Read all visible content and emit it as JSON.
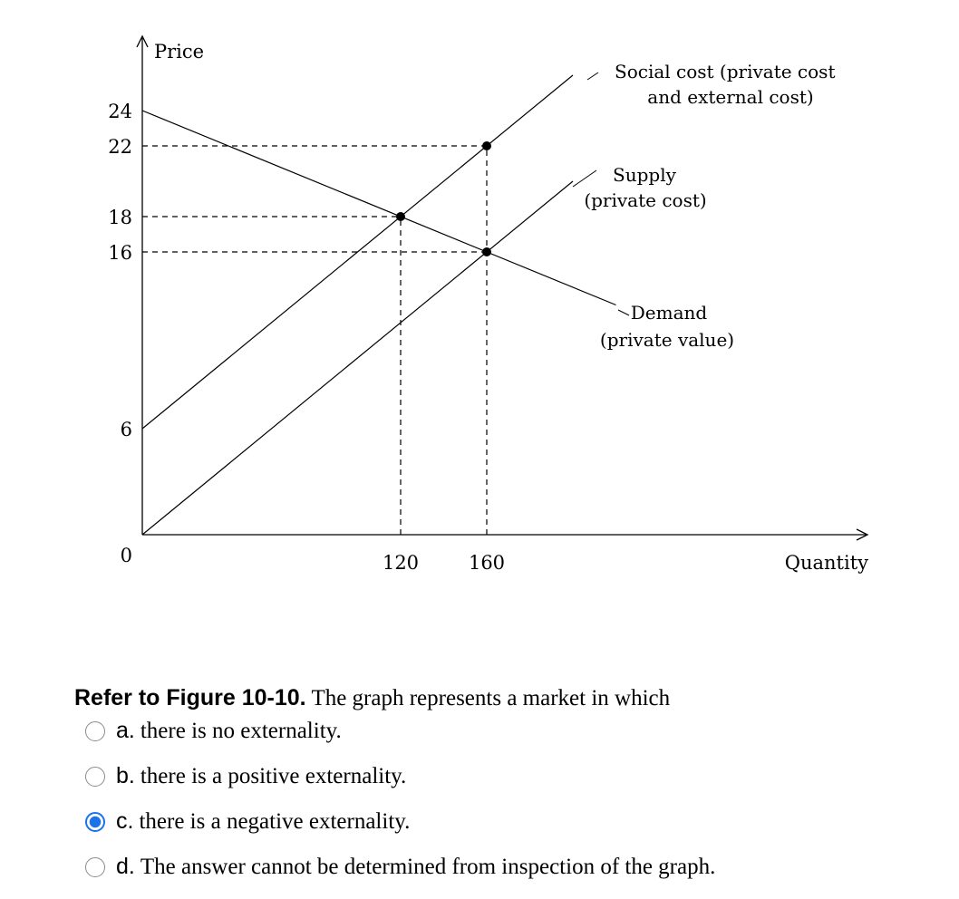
{
  "chart_data": {
    "type": "line",
    "ylabel": "Price",
    "xlabel": "Quantity",
    "xlim": [
      0,
      280
    ],
    "ylim": [
      0,
      27
    ],
    "yticks": [
      "24",
      "22",
      "18",
      "16",
      "6",
      "0"
    ],
    "xticks": [
      "120",
      "160"
    ],
    "series": [
      {
        "name": "Social cost (private cost and external cost)",
        "label_lines": [
          "Social cost (private cost",
          "and external cost)"
        ],
        "x": [
          0,
          200
        ],
        "y": [
          6,
          26
        ]
      },
      {
        "name": "Supply (private cost)",
        "label_lines": [
          "Supply",
          "(private cost)"
        ],
        "x": [
          0,
          200
        ],
        "y": [
          0,
          20
        ]
      },
      {
        "name": "Demand (private value)",
        "label_lines": [
          "Demand",
          "(private value)"
        ],
        "x": [
          0,
          220
        ],
        "y": [
          24,
          13
        ]
      }
    ],
    "points": [
      {
        "x": 120,
        "y": 18
      },
      {
        "x": 160,
        "y": 22
      },
      {
        "x": 160,
        "y": 16
      }
    ],
    "guides": [
      {
        "kind": "h",
        "y": 22,
        "x_to": 160
      },
      {
        "kind": "h",
        "y": 18,
        "x_to": 120
      },
      {
        "kind": "h",
        "y": 16,
        "x_to": 160
      },
      {
        "kind": "v",
        "x": 120,
        "y_to": 18
      },
      {
        "kind": "v",
        "x": 160,
        "y_to": 22
      }
    ]
  },
  "question": {
    "ref": "Refer to Figure 10-10.",
    "text": " The graph represents a market in which"
  },
  "options": [
    {
      "letter": "a.",
      "text": "there is no externality.",
      "selected": false
    },
    {
      "letter": "b.",
      "text": "there is a positive externality.",
      "selected": false
    },
    {
      "letter": "c.",
      "text": "there is a negative externality.",
      "selected": true
    },
    {
      "letter": "d.",
      "text": "The answer cannot be determined from inspection of the graph.",
      "selected": false
    }
  ],
  "colors": {
    "selected_radio": "#1a73e8",
    "unselected_radio": "#8a8a8a"
  }
}
